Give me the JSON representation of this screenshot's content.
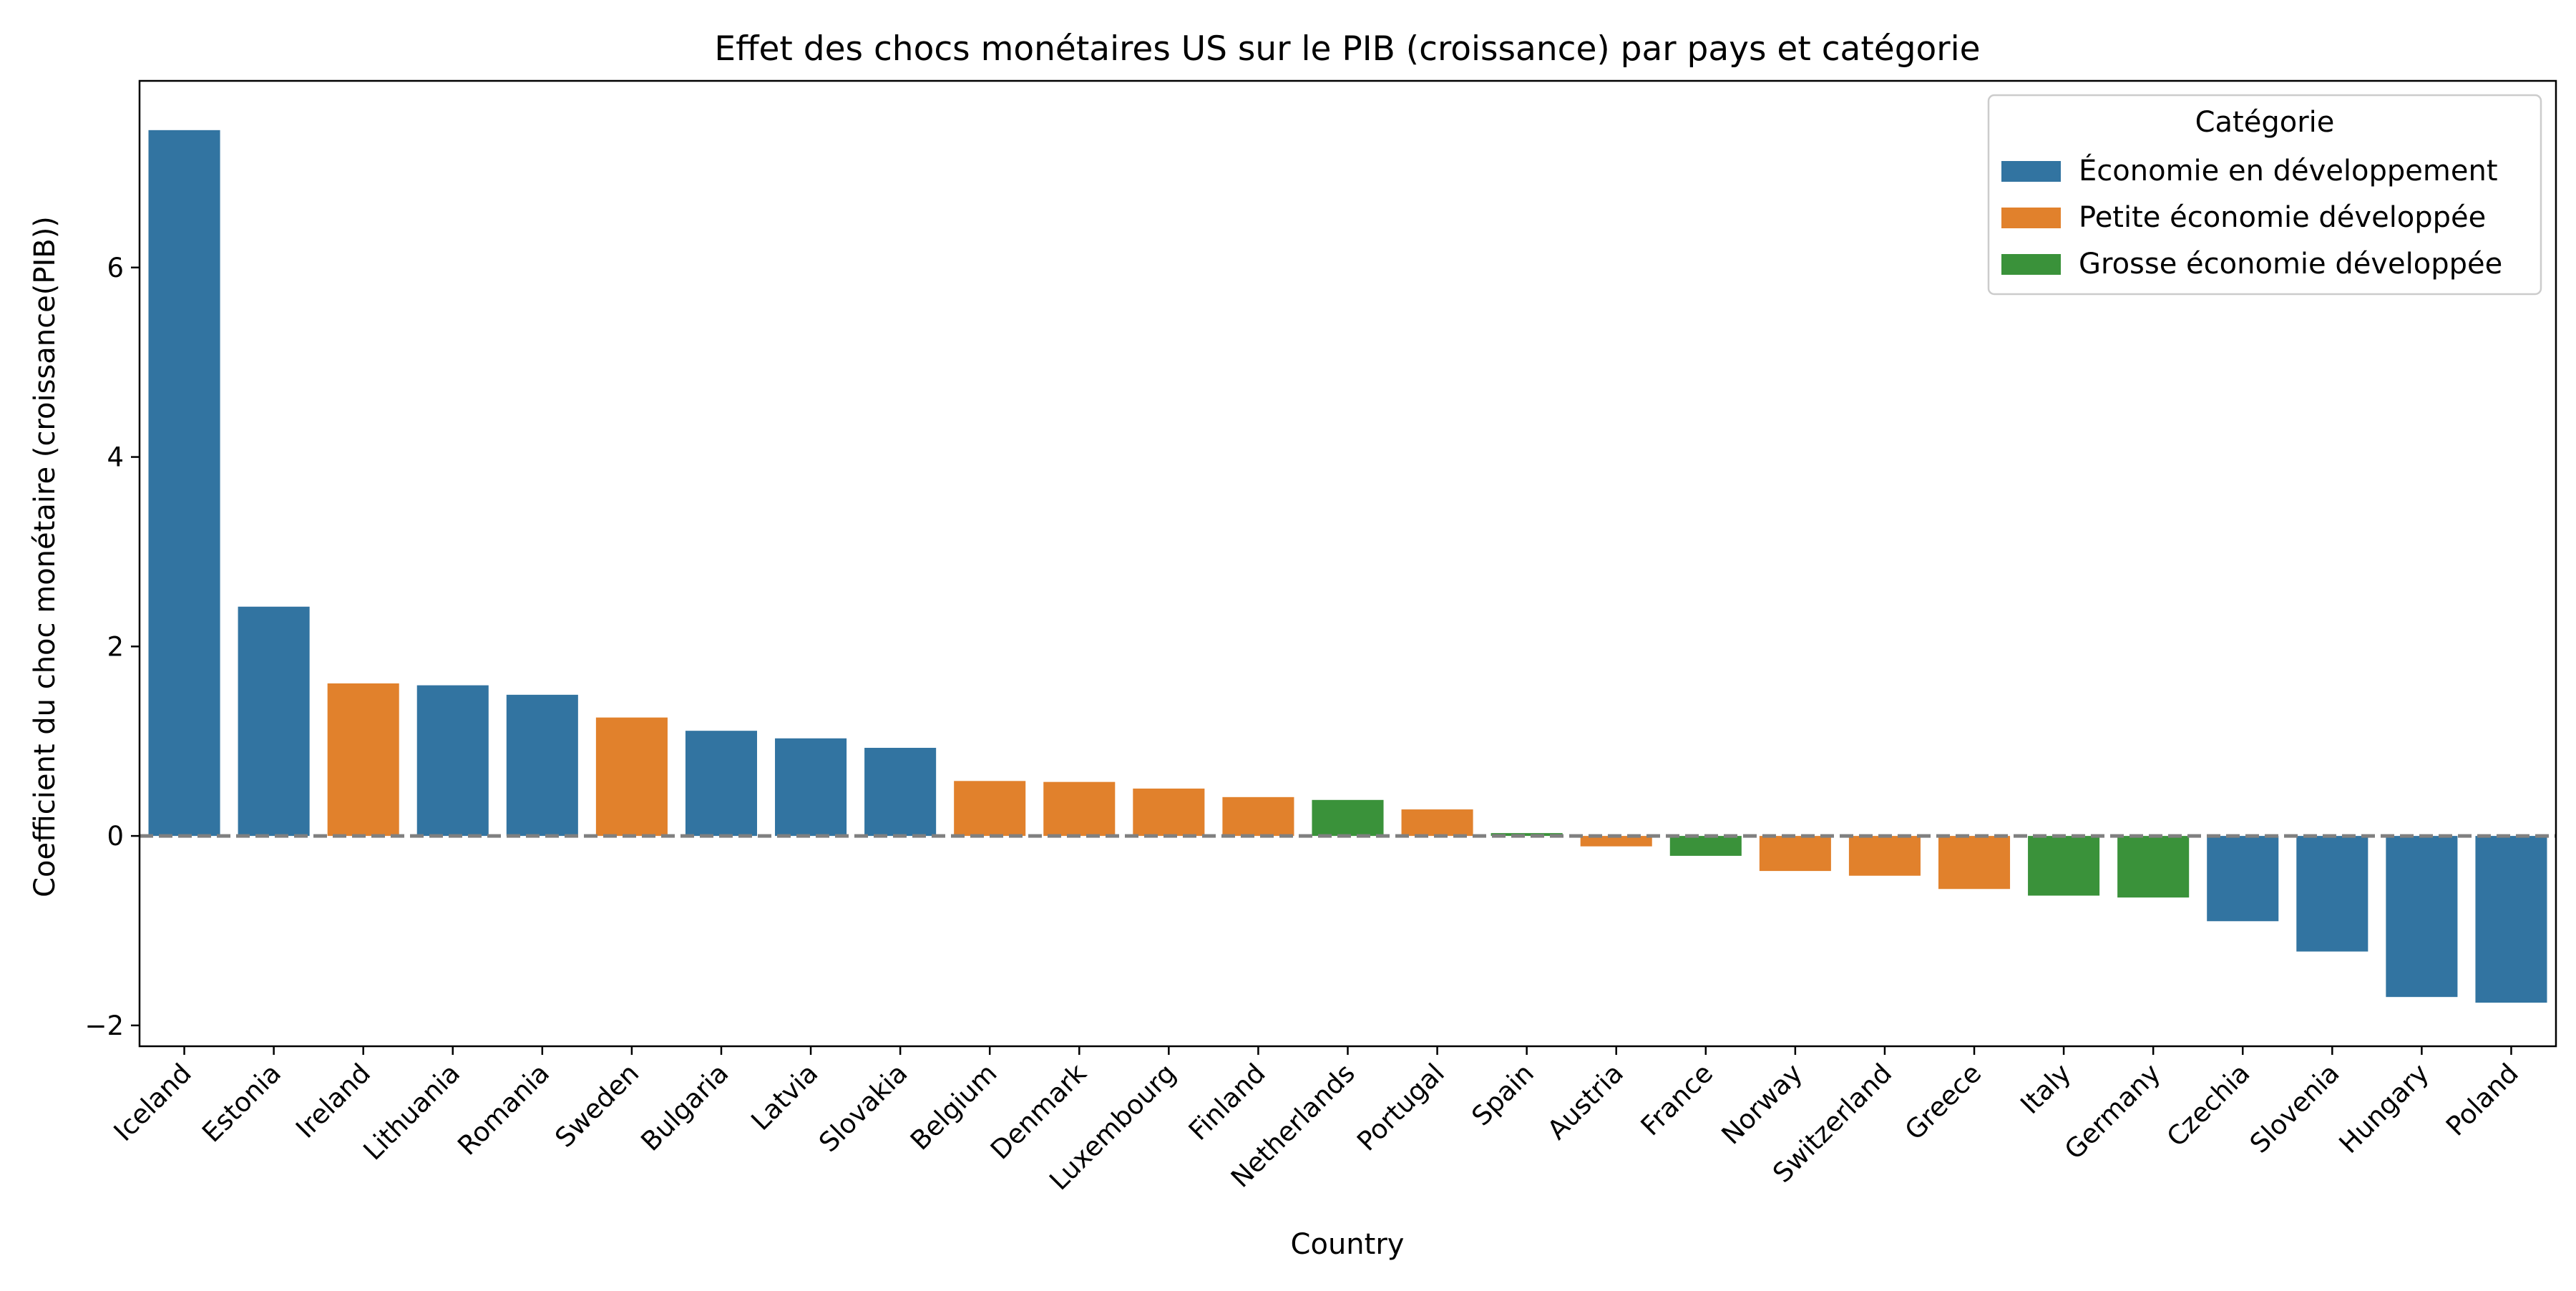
{
  "chart_data": {
    "type": "bar",
    "title": "Effet des chocs monétaires US sur le PIB (croissance) par pays et catégorie",
    "xlabel": "Country",
    "ylabel": "Coefficient du choc monétaire (croissance(PIB))",
    "ylim": [
      -2.22,
      7.97
    ],
    "yticks": [
      -2,
      0,
      2,
      4,
      6
    ],
    "ytick_labels": [
      "−2",
      "0",
      "2",
      "4",
      "6"
    ],
    "grid": false,
    "reference_line": {
      "y": 0,
      "style": "dashed",
      "color": "#808080"
    },
    "legend": {
      "title": "Catégorie",
      "placement": "top-right",
      "entries": [
        {
          "name": "Économie en développement",
          "color": "#3274a1"
        },
        {
          "name": "Petite économie développée",
          "color": "#e1812c"
        },
        {
          "name": "Grosse économie développée",
          "color": "#3a923a"
        }
      ]
    },
    "categories": [
      "Iceland",
      "Estonia",
      "Ireland",
      "Lithuania",
      "Romania",
      "Sweden",
      "Bulgaria",
      "Latvia",
      "Slovakia",
      "Belgium",
      "Denmark",
      "Luxembourg",
      "Finland",
      "Netherlands",
      "Portugal",
      "Spain",
      "Austria",
      "France",
      "Norway",
      "Switzerland",
      "Greece",
      "Italy",
      "Germany",
      "Czechia",
      "Slovenia",
      "Hungary",
      "Poland"
    ],
    "values": [
      7.45,
      2.42,
      1.61,
      1.59,
      1.49,
      1.25,
      1.11,
      1.03,
      0.93,
      0.58,
      0.57,
      0.5,
      0.41,
      0.38,
      0.28,
      0.03,
      -0.11,
      -0.21,
      -0.37,
      -0.42,
      -0.56,
      -0.63,
      -0.65,
      -0.9,
      -1.22,
      -1.7,
      -1.76
    ],
    "series_index": [
      0,
      0,
      1,
      0,
      0,
      1,
      0,
      0,
      0,
      1,
      1,
      1,
      1,
      2,
      1,
      2,
      1,
      2,
      1,
      1,
      1,
      2,
      2,
      0,
      0,
      0,
      0
    ]
  }
}
